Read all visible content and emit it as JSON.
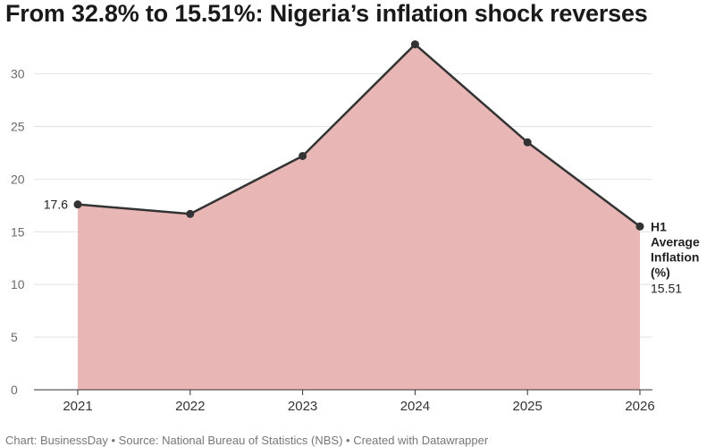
{
  "title": "From 32.8% to 15.51%: Nigeria’s inflation shock reverses",
  "footer": {
    "credit": "Chart: BusinessDay",
    "source": "Source: National Bureau of Statistics (NBS)",
    "tool": "Created with Datawrapper",
    "separator": " • "
  },
  "chart_data": {
    "type": "area",
    "x": [
      "2021",
      "2022",
      "2023",
      "2024",
      "2025",
      "2026"
    ],
    "series": [
      {
        "name": "H1 Average Inflation (%)",
        "values": [
          17.6,
          16.7,
          22.2,
          32.8,
          23.5,
          15.51
        ],
        "fill_color": "#e9b6b6",
        "line_color": "#333333"
      }
    ],
    "series_label_lines": [
      "H1",
      "Average",
      "Inflation",
      "(%)"
    ],
    "data_labels": {
      "first": "17.6",
      "last": "15.51"
    },
    "yticks": [
      0,
      5,
      10,
      15,
      20,
      25,
      30
    ],
    "ylim": [
      0,
      35
    ],
    "grid": true
  }
}
